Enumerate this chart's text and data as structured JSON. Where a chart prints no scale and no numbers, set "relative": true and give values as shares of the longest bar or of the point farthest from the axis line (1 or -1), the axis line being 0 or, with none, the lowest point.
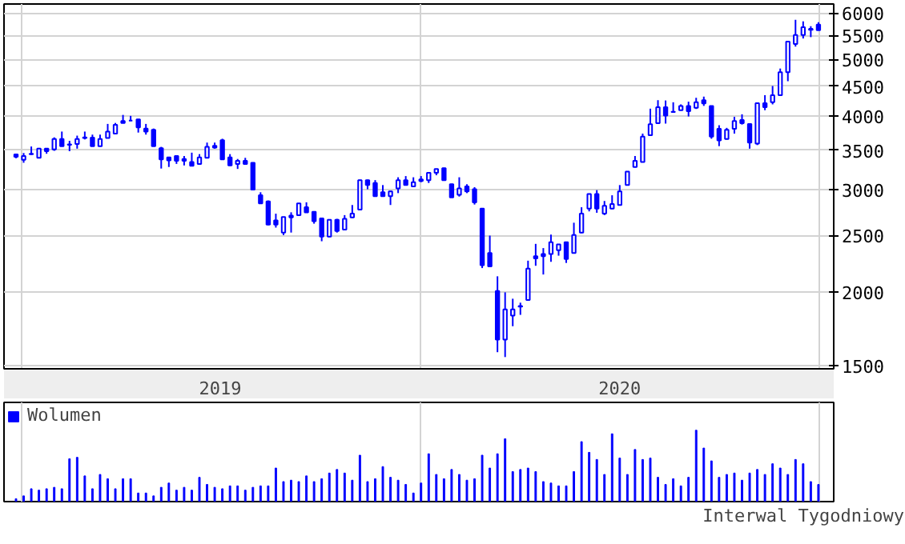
{
  "chart_data": [
    {
      "type": "candlestick",
      "log": true,
      "grid": true,
      "color": "#0000ff",
      "xlim": [
        "2018-12-16",
        "2021-01-14"
      ],
      "xticks": [
        {
          "value": "2019-01-01",
          "label": null
        },
        {
          "value": "2019-07-02",
          "label": "2019"
        },
        {
          "value": "2020-01-01",
          "label": null
        },
        {
          "value": "2020-07-02",
          "label": "2020"
        },
        {
          "value": "2021-01-01",
          "label": null
        }
      ],
      "ylim": [
        1480,
        6220
      ],
      "yticks": [
        1500,
        2000,
        2500,
        3000,
        3500,
        4000,
        4500,
        5000,
        5500,
        6000
      ],
      "x": [
        "2018-12-27",
        "2019-01-03",
        "2019-01-10",
        "2019-01-17",
        "2019-01-24",
        "2019-01-31",
        "2019-02-07",
        "2019-02-14",
        "2019-02-21",
        "2019-02-28",
        "2019-03-07",
        "2019-03-14",
        "2019-03-21",
        "2019-03-28",
        "2019-04-04",
        "2019-04-11",
        "2019-04-18",
        "2019-04-25",
        "2019-05-02",
        "2019-05-09",
        "2019-05-16",
        "2019-05-23",
        "2019-05-30",
        "2019-06-06",
        "2019-06-13",
        "2019-06-20",
        "2019-06-27",
        "2019-07-04",
        "2019-07-11",
        "2019-07-18",
        "2019-07-25",
        "2019-08-01",
        "2019-08-08",
        "2019-08-15",
        "2019-08-22",
        "2019-08-29",
        "2019-09-05",
        "2019-09-12",
        "2019-09-19",
        "2019-09-26",
        "2019-10-03",
        "2019-10-10",
        "2019-10-17",
        "2019-10-24",
        "2019-10-31",
        "2019-11-07",
        "2019-11-14",
        "2019-11-21",
        "2019-11-28",
        "2019-12-05",
        "2019-12-12",
        "2019-12-19",
        "2019-12-26",
        "2020-01-02",
        "2020-01-09",
        "2020-01-16",
        "2020-01-23",
        "2020-01-30",
        "2020-02-06",
        "2020-02-13",
        "2020-02-20",
        "2020-02-27",
        "2020-03-05",
        "2020-03-12",
        "2020-03-19",
        "2020-03-26",
        "2020-04-02",
        "2020-04-09",
        "2020-04-16",
        "2020-04-23",
        "2020-04-30",
        "2020-05-07",
        "2020-05-14",
        "2020-05-21",
        "2020-05-28",
        "2020-06-04",
        "2020-06-11",
        "2020-06-18",
        "2020-06-25",
        "2020-07-02",
        "2020-07-09",
        "2020-07-16",
        "2020-07-23",
        "2020-07-30",
        "2020-08-06",
        "2020-08-13",
        "2020-08-20",
        "2020-08-27",
        "2020-09-03",
        "2020-09-10",
        "2020-09-17",
        "2020-09-24",
        "2020-10-01",
        "2020-10-08",
        "2020-10-15",
        "2020-10-22",
        "2020-10-29",
        "2020-11-05",
        "2020-11-12",
        "2020-11-19",
        "2020-11-26",
        "2020-12-03",
        "2020-12-10",
        "2020-12-17",
        "2020-12-24",
        "2020-12-31"
      ],
      "ohlc": [
        [
          3440,
          3440,
          3390,
          3410
        ],
        [
          3370,
          3460,
          3330,
          3420
        ],
        [
          3445,
          3550,
          3435,
          3450
        ],
        [
          3395,
          3530,
          3390,
          3520
        ],
        [
          3520,
          3520,
          3450,
          3485
        ],
        [
          3510,
          3680,
          3490,
          3655
        ],
        [
          3655,
          3765,
          3550,
          3555
        ],
        [
          3575,
          3630,
          3485,
          3580
        ],
        [
          3585,
          3705,
          3520,
          3655
        ],
        [
          3670,
          3765,
          3650,
          3680
        ],
        [
          3677,
          3720,
          3550,
          3554
        ],
        [
          3555,
          3720,
          3550,
          3655
        ],
        [
          3670,
          3880,
          3665,
          3765
        ],
        [
          3735,
          3895,
          3730,
          3865
        ],
        [
          3925,
          4020,
          3890,
          3895
        ],
        [
          3930,
          4005,
          3925,
          3930
        ],
        [
          3950,
          3955,
          3750,
          3826
        ],
        [
          3810,
          3880,
          3720,
          3765
        ],
        [
          3790,
          3810,
          3550,
          3555
        ],
        [
          3525,
          3545,
          3255,
          3375
        ],
        [
          3400,
          3405,
          3275,
          3360
        ],
        [
          3420,
          3425,
          3315,
          3355
        ],
        [
          3380,
          3420,
          3295,
          3355
        ],
        [
          3340,
          3465,
          3285,
          3290
        ],
        [
          3315,
          3445,
          3310,
          3400
        ],
        [
          3395,
          3605,
          3390,
          3545
        ],
        [
          3560,
          3605,
          3520,
          3535
        ],
        [
          3640,
          3660,
          3370,
          3375
        ],
        [
          3400,
          3445,
          3290,
          3295
        ],
        [
          3315,
          3380,
          3250,
          3355
        ],
        [
          3355,
          3395,
          3310,
          3315
        ],
        [
          3330,
          3335,
          2990,
          2995
        ],
        [
          2930,
          2965,
          2835,
          2838
        ],
        [
          2860,
          2870,
          2605,
          2610
        ],
        [
          2655,
          2725,
          2580,
          2610
        ],
        [
          2530,
          2690,
          2505,
          2690
        ],
        [
          2705,
          2740,
          2530,
          2685
        ],
        [
          2710,
          2840,
          2705,
          2838
        ],
        [
          2795,
          2850,
          2735,
          2740
        ],
        [
          2745,
          2750,
          2620,
          2645
        ],
        [
          2675,
          2680,
          2445,
          2490
        ],
        [
          2490,
          2665,
          2485,
          2660
        ],
        [
          2660,
          2670,
          2530,
          2545
        ],
        [
          2560,
          2710,
          2555,
          2670
        ],
        [
          2685,
          2820,
          2680,
          2727
        ],
        [
          2770,
          3115,
          2765,
          3110
        ],
        [
          3110,
          3115,
          3000,
          3050
        ],
        [
          3075,
          3110,
          2915,
          2920
        ],
        [
          2965,
          3050,
          2915,
          2920
        ],
        [
          2920,
          2980,
          2820,
          2975
        ],
        [
          3010,
          3145,
          2955,
          3110
        ],
        [
          3110,
          3160,
          3045,
          3050
        ],
        [
          3035,
          3145,
          3025,
          3085
        ],
        [
          3120,
          3160,
          3085,
          3100
        ],
        [
          3110,
          3200,
          3075,
          3200
        ],
        [
          3200,
          3250,
          3170,
          3250
        ],
        [
          3260,
          3265,
          3105,
          3110
        ],
        [
          3060,
          3065,
          2905,
          2905
        ],
        [
          2935,
          3145,
          2915,
          3010
        ],
        [
          3035,
          3060,
          2955,
          2975
        ],
        [
          3000,
          3025,
          2825,
          2850
        ],
        [
          2780,
          2785,
          2200,
          2225
        ],
        [
          2335,
          2500,
          2215,
          2215
        ],
        [
          2010,
          2130,
          1580,
          1660
        ],
        [
          1660,
          2000,
          1550,
          1870
        ],
        [
          1825,
          1950,
          1750,
          1870
        ],
        [
          1890,
          1920,
          1830,
          1895
        ],
        [
          1940,
          2265,
          1935,
          2195
        ],
        [
          2305,
          2420,
          2220,
          2285
        ],
        [
          2325,
          2380,
          2145,
          2305
        ],
        [
          2325,
          2510,
          2255,
          2435
        ],
        [
          2360,
          2415,
          2310,
          2415
        ],
        [
          2435,
          2440,
          2245,
          2280
        ],
        [
          2335,
          2630,
          2330,
          2505
        ],
        [
          2530,
          2795,
          2525,
          2727
        ],
        [
          2780,
          2950,
          2750,
          2945
        ],
        [
          2945,
          2990,
          2735,
          2780
        ],
        [
          2725,
          2865,
          2710,
          2810
        ],
        [
          2780,
          2930,
          2775,
          2830
        ],
        [
          2820,
          3050,
          2815,
          2975
        ],
        [
          3050,
          3220,
          3045,
          3215
        ],
        [
          3275,
          3420,
          3270,
          3355
        ],
        [
          3340,
          3735,
          3335,
          3690
        ],
        [
          3710,
          4120,
          3705,
          3875
        ],
        [
          3890,
          4260,
          3885,
          4145
        ],
        [
          4145,
          4255,
          3885,
          4010
        ],
        [
          4065,
          4225,
          4055,
          4070
        ],
        [
          4095,
          4190,
          4090,
          4165
        ],
        [
          4165,
          4235,
          3995,
          4080
        ],
        [
          4135,
          4300,
          4115,
          4225
        ],
        [
          4260,
          4320,
          4165,
          4205
        ],
        [
          4165,
          4170,
          3660,
          3690
        ],
        [
          3805,
          3860,
          3555,
          3635
        ],
        [
          3655,
          3820,
          3650,
          3790
        ],
        [
          3805,
          3990,
          3735,
          3925
        ],
        [
          3940,
          4030,
          3870,
          3890
        ],
        [
          3880,
          3885,
          3520,
          3605
        ],
        [
          3590,
          4215,
          3570,
          4210
        ],
        [
          4210,
          4345,
          4095,
          4145
        ],
        [
          4225,
          4505,
          4190,
          4345
        ],
        [
          4345,
          4825,
          4340,
          4755
        ],
        [
          4755,
          5370,
          4590,
          5365
        ],
        [
          5315,
          5845,
          5260,
          5505
        ],
        [
          5505,
          5810,
          5430,
          5675
        ],
        [
          5620,
          5700,
          5460,
          5640
        ],
        [
          5735,
          5790,
          5605,
          5610
        ]
      ]
    },
    {
      "type": "bar",
      "relative": true,
      "grid": "x",
      "legend": "top left",
      "tick_labels": false,
      "xlim": [
        "2018-12-16",
        "2021-01-14"
      ],
      "xticks": [
        {
          "value": "2019-01-01",
          "label": null
        },
        {
          "value": "2020-01-01",
          "label": null
        },
        {
          "value": "2021-01-01",
          "label": null
        }
      ],
      "annotations": [
        "Interwal Tygodniowy"
      ],
      "x": [
        "2018-12-27",
        "2019-01-03",
        "2019-01-10",
        "2019-01-17",
        "2019-01-24",
        "2019-01-31",
        "2019-02-07",
        "2019-02-14",
        "2019-02-21",
        "2019-02-28",
        "2019-03-07",
        "2019-03-14",
        "2019-03-21",
        "2019-03-28",
        "2019-04-04",
        "2019-04-11",
        "2019-04-18",
        "2019-04-25",
        "2019-05-02",
        "2019-05-09",
        "2019-05-16",
        "2019-05-23",
        "2019-05-30",
        "2019-06-06",
        "2019-06-13",
        "2019-06-20",
        "2019-06-27",
        "2019-07-04",
        "2019-07-11",
        "2019-07-18",
        "2019-07-25",
        "2019-08-01",
        "2019-08-08",
        "2019-08-15",
        "2019-08-22",
        "2019-08-29",
        "2019-09-05",
        "2019-09-12",
        "2019-09-19",
        "2019-09-26",
        "2019-10-03",
        "2019-10-10",
        "2019-10-17",
        "2019-10-24",
        "2019-10-31",
        "2019-11-07",
        "2019-11-14",
        "2019-11-21",
        "2019-11-28",
        "2019-12-05",
        "2019-12-12",
        "2019-12-19",
        "2019-12-26",
        "2020-01-02",
        "2020-01-09",
        "2020-01-16",
        "2020-01-23",
        "2020-01-30",
        "2020-02-06",
        "2020-02-13",
        "2020-02-20",
        "2020-02-27",
        "2020-03-05",
        "2020-03-12",
        "2020-03-19",
        "2020-03-26",
        "2020-04-02",
        "2020-04-09",
        "2020-04-16",
        "2020-04-23",
        "2020-04-30",
        "2020-05-07",
        "2020-05-14",
        "2020-05-21",
        "2020-05-28",
        "2020-06-04",
        "2020-06-11",
        "2020-06-18",
        "2020-06-25",
        "2020-07-02",
        "2020-07-09",
        "2020-07-16",
        "2020-07-23",
        "2020-07-30",
        "2020-08-06",
        "2020-08-13",
        "2020-08-20",
        "2020-08-27",
        "2020-09-03",
        "2020-09-10",
        "2020-09-17",
        "2020-09-24",
        "2020-10-01",
        "2020-10-08",
        "2020-10-15",
        "2020-10-22",
        "2020-10-29",
        "2020-11-05",
        "2020-11-12",
        "2020-11-19",
        "2020-11-26",
        "2020-12-03",
        "2020-12-10",
        "2020-12-17",
        "2020-12-24",
        "2020-12-31"
      ],
      "series": [
        {
          "name": "Wolumen",
          "color": "#0000ff",
          "values": [
            0.04,
            0.08,
            0.18,
            0.16,
            0.18,
            0.2,
            0.18,
            0.6,
            0.62,
            0.36,
            0.18,
            0.38,
            0.32,
            0.18,
            0.32,
            0.32,
            0.12,
            0.12,
            0.08,
            0.2,
            0.26,
            0.16,
            0.2,
            0.16,
            0.34,
            0.24,
            0.2,
            0.18,
            0.22,
            0.22,
            0.16,
            0.2,
            0.22,
            0.22,
            0.47,
            0.28,
            0.3,
            0.28,
            0.36,
            0.28,
            0.32,
            0.4,
            0.45,
            0.4,
            0.3,
            0.65,
            0.28,
            0.32,
            0.49,
            0.34,
            0.3,
            0.24,
            0.12,
            0.26,
            0.67,
            0.38,
            0.32,
            0.45,
            0.38,
            0.3,
            0.32,
            0.65,
            0.47,
            0.67,
            0.88,
            0.42,
            0.45,
            0.47,
            0.42,
            0.28,
            0.26,
            0.22,
            0.22,
            0.42,
            0.84,
            0.69,
            0.59,
            0.38,
            0.95,
            0.61,
            0.38,
            0.73,
            0.59,
            0.61,
            0.34,
            0.24,
            0.32,
            0.22,
            0.34,
            1,
            0.75,
            0.57,
            0.34,
            0.38,
            0.4,
            0.3,
            0.4,
            0.45,
            0.38,
            0.53,
            0.47,
            0.38,
            0.59,
            0.53,
            0.28,
            0.24
          ]
        }
      ]
    }
  ]
}
